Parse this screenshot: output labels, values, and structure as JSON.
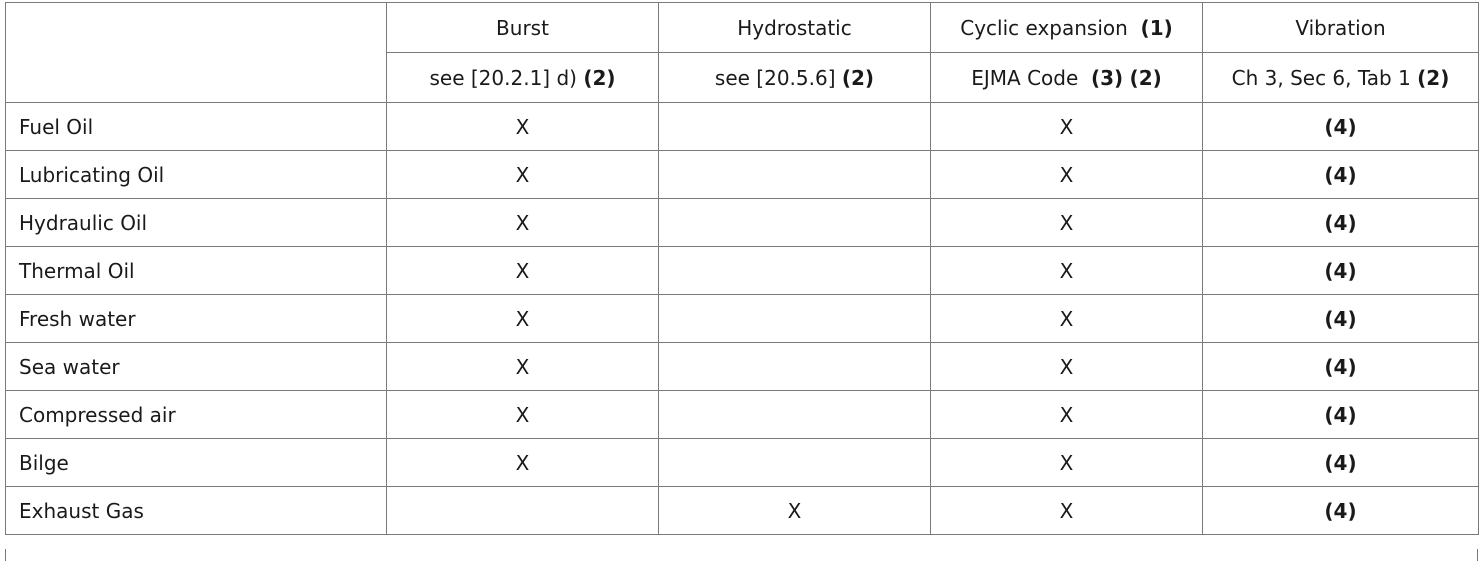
{
  "headers": {
    "burst": "Burst",
    "hydrostatic": "Hydrostatic",
    "cyclic": "Cyclic expansion",
    "cyclic_note": "(1)",
    "vibration": "Vibration"
  },
  "subheaders": {
    "burst": "see [20.2.1] d)",
    "burst_note": "(2)",
    "hydrostatic": "see [20.5.6]",
    "hydrostatic_note": "(2)",
    "cyclic": "EJMA Code",
    "cyclic_note1": "(3)",
    "cyclic_note2": "(2)",
    "vibration": "Ch 3, Sec 6, Tab 1",
    "vibration_note": "(2)"
  },
  "rows": [
    {
      "name": "Fuel Oil",
      "burst": "X",
      "hydrostatic": "",
      "cyclic": "X",
      "vibration": "(4)"
    },
    {
      "name": "Lubricating Oil",
      "burst": "X",
      "hydrostatic": "",
      "cyclic": "X",
      "vibration": "(4)"
    },
    {
      "name": "Hydraulic Oil",
      "burst": "X",
      "hydrostatic": "",
      "cyclic": "X",
      "vibration": "(4)"
    },
    {
      "name": "Thermal Oil",
      "burst": "X",
      "hydrostatic": "",
      "cyclic": "X",
      "vibration": "(4)"
    },
    {
      "name": "Fresh water",
      "burst": "X",
      "hydrostatic": "",
      "cyclic": "X",
      "vibration": "(4)"
    },
    {
      "name": "Sea water",
      "burst": "X",
      "hydrostatic": "",
      "cyclic": "X",
      "vibration": "(4)"
    },
    {
      "name": "Compressed air",
      "burst": "X",
      "hydrostatic": "",
      "cyclic": "X",
      "vibration": "(4)"
    },
    {
      "name": "Bilge",
      "burst": "X",
      "hydrostatic": "",
      "cyclic": "X",
      "vibration": "(4)"
    },
    {
      "name": "Exhaust Gas",
      "burst": "",
      "hydrostatic": "X",
      "cyclic": "X",
      "vibration": "(4)"
    }
  ]
}
